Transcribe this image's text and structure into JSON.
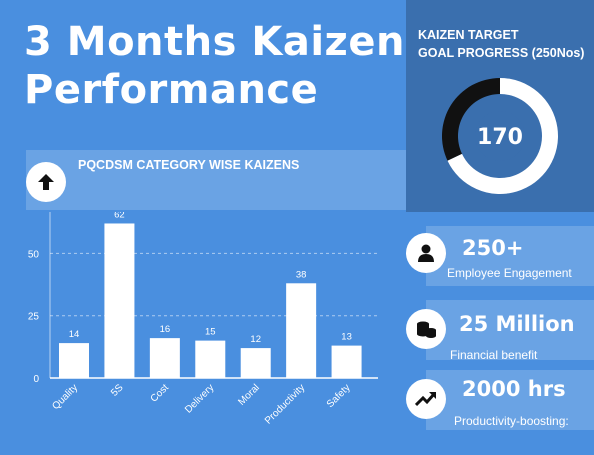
{
  "header": {
    "title": "3 Months Kaizen\nPerformance"
  },
  "target": {
    "title": "KAIZEN  TARGET\nGOAL PROGRESS (250Nos)",
    "achieved": 170,
    "goal": 250,
    "center_label": "170",
    "colors": {
      "done": "#ffffff",
      "remaining": "#111111"
    }
  },
  "category_section": {
    "title": "PQCDSM CATEGORY WISE KAIZENS",
    "icon": "up-arrow-icon"
  },
  "chart_data": {
    "type": "bar",
    "categories": [
      "Quality",
      "5S",
      "Cost",
      "Delivery",
      "Moral",
      "Productivity",
      "Safety"
    ],
    "values": [
      14,
      62,
      16,
      15,
      12,
      38,
      13
    ],
    "data_labels": [
      "14",
      "62",
      "16",
      "15",
      "12",
      "38",
      "13"
    ],
    "yticks": [
      "0",
      "25",
      "50"
    ],
    "ylim": [
      0,
      65
    ],
    "grid": true,
    "bar_color": "#ffffff"
  },
  "stats": [
    {
      "value": "250+",
      "label": "Employee Engagement",
      "icon": "person-icon"
    },
    {
      "value": "25 Million",
      "label": "Financial benefit",
      "icon": "coins-icon"
    },
    {
      "value": "2000 hrs",
      "label": "Productivity-boosting:",
      "icon": "trend-up-icon"
    }
  ]
}
